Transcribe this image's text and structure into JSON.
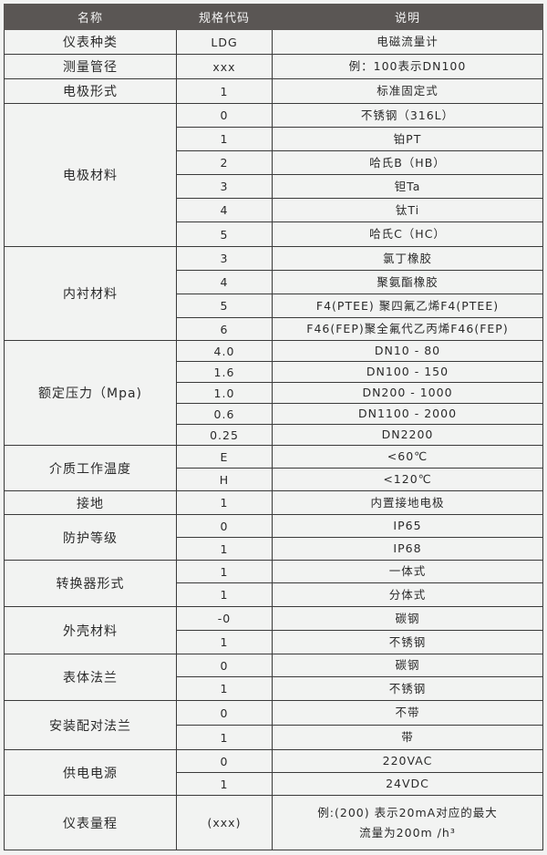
{
  "header": {
    "name": "名称",
    "code": "规格代码",
    "desc": "说明"
  },
  "groups": [
    {
      "name": "仪表种类",
      "items": [
        {
          "code": "LDG",
          "desc": "电磁流量计"
        }
      ]
    },
    {
      "name": "测量管径",
      "items": [
        {
          "code": "xxx",
          "desc": "例：100表示DN100"
        }
      ]
    },
    {
      "name": "电极形式",
      "items": [
        {
          "code": "1",
          "desc": "标准固定式"
        }
      ]
    },
    {
      "name": "电极材料",
      "items": [
        {
          "code": "0",
          "desc": "不锈钢（316L）"
        },
        {
          "code": "1",
          "desc": "铂PT"
        },
        {
          "code": "2",
          "desc": "哈氏B（HB）"
        },
        {
          "code": "3",
          "desc": "钽Ta"
        },
        {
          "code": "4",
          "desc": "钛Ti"
        },
        {
          "code": "5",
          "desc": "哈氏C（HC）"
        }
      ]
    },
    {
      "name": "内衬材料",
      "items": [
        {
          "code": "3",
          "desc": "氯丁橡胶"
        },
        {
          "code": "4",
          "desc": "聚氨酯橡胶"
        },
        {
          "code": "5",
          "desc": "F4(PTEE) 聚四氟乙烯F4(PTEE)"
        },
        {
          "code": "6",
          "desc": "F46(FEP)聚全氟代乙丙烯F46(FEP)"
        }
      ]
    },
    {
      "name": "额定压力（Mpa)",
      "items": [
        {
          "code": "4.0",
          "desc": "DN10 - 80"
        },
        {
          "code": "1.6",
          "desc": "DN100 - 150"
        },
        {
          "code": "1.0",
          "desc": "DN200 - 1000"
        },
        {
          "code": "0.6",
          "desc": "DN1100 - 2000"
        },
        {
          "code": "0.25",
          "desc": "DN2200"
        }
      ]
    },
    {
      "name": "介质工作温度",
      "items": [
        {
          "code": "E",
          "desc": "<60℃"
        },
        {
          "code": "H",
          "desc": "<120℃"
        }
      ]
    },
    {
      "name": "接地",
      "items": [
        {
          "code": "1",
          "desc": "内置接地电极"
        }
      ]
    },
    {
      "name": "防护等级",
      "items": [
        {
          "code": "0",
          "desc": "IP65"
        },
        {
          "code": "1",
          "desc": "IP68"
        }
      ]
    },
    {
      "name": "转换器形式",
      "items": [
        {
          "code": "1",
          "desc": "一体式"
        },
        {
          "code": "1",
          "desc": "分体式"
        }
      ]
    },
    {
      "name": "外壳材料",
      "items": [
        {
          "code": "-0",
          "desc": "碳钢"
        },
        {
          "code": "1",
          "desc": "不锈钢"
        }
      ]
    },
    {
      "name": "表体法兰",
      "items": [
        {
          "code": "0",
          "desc": "碳钢"
        },
        {
          "code": "1",
          "desc": "不锈钢"
        }
      ]
    },
    {
      "name": "安装配对法兰",
      "items": [
        {
          "code": "0",
          "desc": "不带"
        },
        {
          "code": "1",
          "desc": "带"
        }
      ]
    },
    {
      "name": "供电电源",
      "items": [
        {
          "code": "0",
          "desc": "220VAC"
        },
        {
          "code": "1",
          "desc": "24VDC"
        }
      ]
    },
    {
      "name": "仪表量程",
      "items": [
        {
          "code": "(xxx)",
          "desc": "例:(200) 表示20mA对应的最大",
          "desc2": "流量为200m /h³"
        }
      ]
    }
  ]
}
